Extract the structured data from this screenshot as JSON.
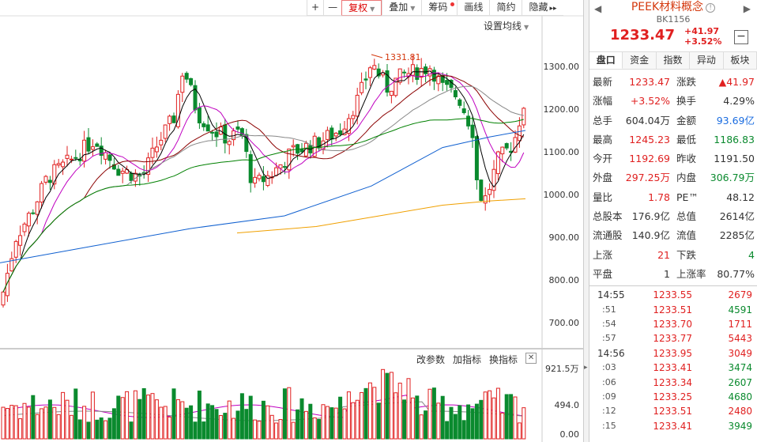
{
  "toolbar": {
    "plus": "+",
    "minus": "—",
    "fuquan": "复权",
    "diejia": "叠加",
    "chouma": "筹码",
    "huaxian": "画线",
    "jianyue": "简约",
    "yincang": "隐藏",
    "more": "▸▸"
  },
  "chart": {
    "setting_link": "设置均线",
    "peak_label": "1331.81",
    "y_ticks": [
      "1300.00",
      "1200.00",
      "1100.00",
      "1000.00",
      "900.00",
      "800.00",
      "700.00"
    ],
    "vol_ticks": [
      "494.0",
      "0.00"
    ],
    "vol_max": "921.5万",
    "vol_tools": {
      "params": "改参数",
      "add": "加指标",
      "switch": "换指标",
      "close": "✕"
    }
  },
  "panel": {
    "name": "PEEK材料概念",
    "code": "BK1156",
    "price": "1233.47",
    "change": "+41.97",
    "change_pct": "+3.52%",
    "minimize": "−",
    "nav_left": "◀",
    "nav_right": "▶",
    "info_icon": "!",
    "tabs": [
      "盘口",
      "资金",
      "指数",
      "异动",
      "板块"
    ],
    "stats": [
      [
        {
          "label": "最新",
          "value": "1233.47",
          "color": "red"
        },
        {
          "label": "涨跌",
          "value": "▲41.97",
          "color": "red"
        }
      ],
      [
        {
          "label": "涨幅",
          "value": "+3.52%",
          "color": "red"
        },
        {
          "label": "换手",
          "value": "4.29%",
          "color": "dark"
        }
      ],
      [
        {
          "label": "总手",
          "value": "604.04万",
          "color": "dark"
        },
        {
          "label": "金额",
          "value": "93.69亿",
          "color": "blue"
        }
      ],
      [
        {
          "label": "最高",
          "value": "1245.23",
          "color": "red"
        },
        {
          "label": "最低",
          "value": "1186.83",
          "color": "green"
        }
      ],
      [
        {
          "label": "今开",
          "value": "1192.69",
          "color": "red"
        },
        {
          "label": "昨收",
          "value": "1191.50",
          "color": "dark"
        }
      ],
      [
        {
          "label": "外盘",
          "value": "297.25万",
          "color": "red"
        },
        {
          "label": "内盘",
          "value": "306.79万",
          "color": "green"
        }
      ],
      [
        {
          "label": "量比",
          "value": "1.78",
          "color": "red"
        },
        {
          "label": "PE™",
          "value": "48.12",
          "color": "dark"
        }
      ],
      [
        {
          "label": "总股本",
          "value": "176.9亿",
          "color": "dark"
        },
        {
          "label": "总值",
          "value": "2614亿",
          "color": "dark"
        }
      ],
      [
        {
          "label": "流通股",
          "value": "140.9亿",
          "color": "dark"
        },
        {
          "label": "流值",
          "value": "2285亿",
          "color": "dark"
        }
      ],
      [
        {
          "label": "上涨",
          "value": "21",
          "color": "red"
        },
        {
          "label": "下跌",
          "value": "4",
          "color": "green"
        }
      ],
      [
        {
          "label": "平盘",
          "value": "1",
          "color": "dark"
        },
        {
          "label": "上涨率",
          "value": "80.77%",
          "color": "dark"
        }
      ]
    ],
    "ticks": [
      {
        "time": "14:55",
        "price": "1233.55",
        "vol": "2679",
        "color": "red",
        "sub": false
      },
      {
        "time": ":51",
        "price": "1233.51",
        "vol": "4591",
        "color": "green",
        "sub": true
      },
      {
        "time": ":54",
        "price": "1233.70",
        "vol": "1711",
        "color": "red",
        "sub": true
      },
      {
        "time": ":57",
        "price": "1233.77",
        "vol": "5443",
        "color": "red",
        "sub": true
      },
      {
        "time": "14:56",
        "price": "1233.95",
        "vol": "3049",
        "color": "red",
        "sub": false
      },
      {
        "time": ":03",
        "price": "1233.41",
        "vol": "3474",
        "color": "green",
        "sub": true
      },
      {
        "time": ":06",
        "price": "1233.34",
        "vol": "2607",
        "color": "green",
        "sub": true
      },
      {
        "time": ":09",
        "price": "1233.25",
        "vol": "4680",
        "color": "green",
        "sub": true
      },
      {
        "time": ":12",
        "price": "1233.51",
        "vol": "2480",
        "color": "red",
        "sub": true
      },
      {
        "time": ":15",
        "price": "1233.41",
        "vol": "3949",
        "color": "green",
        "sub": true
      }
    ]
  },
  "colors": {
    "up": "#e02020",
    "down": "#0a8a2e",
    "ma5": "#000000",
    "ma10": "#c000c0",
    "ma20": "#8b0000",
    "ma30": "#888888",
    "ma60": "#008000",
    "ma120": "#1060d0",
    "ma250": "#f0a000"
  }
}
